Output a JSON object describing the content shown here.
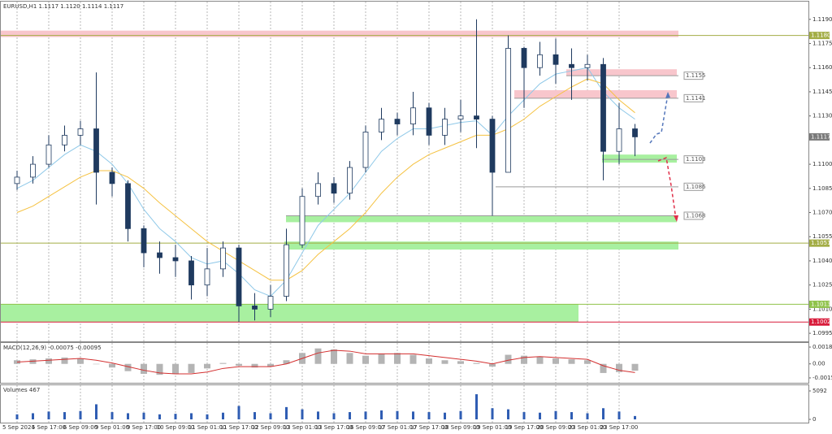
{
  "chart_data": {
    "type": "candlestick",
    "title": "EURUSD,H1  1.1117 1.1120 1.1114 1.1117",
    "categories": [
      "5 Sep 2024",
      null,
      "5 Sep 17:00",
      null,
      "6 Sep 09:00",
      null,
      "9 Sep 01:00",
      null,
      "9 Sep 17:00",
      null,
      "10 Sep 09:00",
      null,
      "11 Sep 01:00",
      null,
      "11 Sep 17:00",
      null,
      "12 Sep 09:00",
      null,
      "13 Sep 01:00",
      null,
      "13 Sep 17:00",
      null,
      "16 Sep 09:00",
      null,
      "17 Sep 01:00",
      null,
      "17 Sep 17:00",
      null,
      "18 Sep 09:00",
      null,
      "19 Sep 01:00",
      null,
      "19 Sep 17:00",
      null,
      "20 Sep 09:00",
      null,
      "23 Sep 01:00",
      null,
      "23 Sep 17:00",
      null
    ],
    "open": [
      1.1088,
      1.1092,
      1.11,
      1.1112,
      1.1118,
      1.1122,
      1.1095,
      1.1088,
      1.106,
      1.1045,
      1.1042,
      1.104,
      1.1025,
      1.1035,
      1.1048,
      1.1012,
      1.101,
      1.1018,
      1.105,
      1.108,
      1.1088,
      1.1082,
      1.1098,
      1.112,
      1.1128,
      1.1125,
      1.1135,
      1.1118,
      1.1128,
      1.113,
      1.1128,
      1.1095,
      1.1172,
      1.116,
      1.1168,
      1.1162,
      1.116,
      1.1162,
      1.1108,
      1.1122
    ],
    "high": [
      1.1096,
      1.1105,
      1.1118,
      1.1124,
      1.1127,
      1.1157,
      1.1098,
      1.109,
      1.1062,
      1.1052,
      1.105,
      1.1043,
      1.1048,
      1.1052,
      1.105,
      1.102,
      1.1025,
      1.106,
      1.1085,
      1.1095,
      1.1092,
      1.1102,
      1.1124,
      1.1135,
      1.1132,
      1.1145,
      1.1138,
      1.1135,
      1.114,
      1.119,
      1.113,
      1.118,
      1.1173,
      1.1176,
      1.1178,
      1.1172,
      1.1168,
      1.1166,
      1.1138,
      1.1125
    ],
    "low": [
      1.1084,
      1.1088,
      1.1098,
      1.1108,
      1.1112,
      1.1075,
      1.108,
      1.1052,
      1.1036,
      1.1032,
      1.103,
      1.1016,
      1.1018,
      1.103,
      1.1002,
      1.1003,
      1.1005,
      1.1015,
      1.1048,
      1.1075,
      1.1076,
      1.1078,
      1.1095,
      1.1115,
      1.1118,
      1.1118,
      1.1112,
      1.1112,
      1.112,
      1.111,
      1.1068,
      1.1095,
      1.1135,
      1.1155,
      1.115,
      1.114,
      1.1152,
      1.109,
      1.11,
      1.1105
    ],
    "close": [
      1.1092,
      1.11,
      1.1112,
      1.1118,
      1.1122,
      1.1095,
      1.1088,
      1.106,
      1.1045,
      1.1042,
      1.104,
      1.1025,
      1.1035,
      1.1048,
      1.1012,
      1.101,
      1.1018,
      1.105,
      1.108,
      1.1088,
      1.1082,
      1.1098,
      1.112,
      1.1128,
      1.1125,
      1.1135,
      1.1118,
      1.1128,
      1.113,
      1.1128,
      1.1095,
      1.1172,
      1.116,
      1.1168,
      1.1162,
      1.116,
      1.1162,
      1.1108,
      1.1122,
      1.1117
    ],
    "up_color": "#ffffff",
    "down_color": "#1f3a5f",
    "wick_color": "#1f3a5f",
    "ylim": [
      1.099,
      1.1201
    ],
    "yticks": [
      {
        "value": 1.119,
        "label": "1.1190"
      },
      1.1175,
      {
        "value": 1.116,
        "label": "1.1160"
      },
      1.1145,
      {
        "value": 1.113,
        "label": "1.1130"
      },
      {
        "value": 1.11,
        "label": "1.1100"
      },
      1.1085,
      {
        "value": 1.107,
        "label": "1.1070"
      },
      1.1055,
      {
        "value": 1.104,
        "label": "1.1040"
      },
      1.1025,
      {
        "value": 1.101,
        "label": "1.1010"
      },
      1.0995
    ],
    "grid": true,
    "moving_averages": [
      {
        "color": "#8ec8e8",
        "values": [
          1.1085,
          1.109,
          1.1098,
          1.1106,
          1.1112,
          1.1108,
          1.11,
          1.1088,
          1.1072,
          1.106,
          1.1052,
          1.1042,
          1.1038,
          1.104,
          1.1032,
          1.1022,
          1.1018,
          1.1028,
          1.1045,
          1.1062,
          1.1072,
          1.1082,
          1.1095,
          1.1108,
          1.1116,
          1.1122,
          1.1122,
          1.1124,
          1.1126,
          1.1127,
          1.1118,
          1.113,
          1.114,
          1.115,
          1.1156,
          1.1158,
          1.116,
          1.1145,
          1.1135,
          1.1128
        ]
      },
      {
        "color": "#f5c242",
        "values": [
          1.107,
          1.1074,
          1.108,
          1.1086,
          1.1092,
          1.1096,
          1.1096,
          1.1092,
          1.1085,
          1.1076,
          1.1068,
          1.106,
          1.1052,
          1.1046,
          1.104,
          1.1034,
          1.1028,
          1.1028,
          1.1034,
          1.1044,
          1.1052,
          1.106,
          1.107,
          1.1082,
          1.1092,
          1.11,
          1.1106,
          1.111,
          1.1114,
          1.1118,
          1.1118,
          1.1122,
          1.1128,
          1.1136,
          1.1142,
          1.1148,
          1.1153,
          1.115,
          1.114,
          1.1132
        ]
      }
    ],
    "zones": [
      {
        "low": 1.1179,
        "high": 1.1183,
        "color": "#f8c6cc"
      },
      {
        "low": 1.1155,
        "high": 1.1159,
        "color": "#f8c6cc"
      },
      {
        "low": 1.1141,
        "high": 1.1146,
        "color": "#f8c6cc"
      },
      {
        "low": 1.1101,
        "high": 1.1106,
        "color": "#a8f0a0"
      },
      {
        "low": 1.1064,
        "high": 1.1068,
        "color": "#a8f0a0"
      },
      {
        "low": 1.1047,
        "high": 1.1052,
        "color": "#a8f0a0"
      },
      {
        "low": 1.1002,
        "high": 1.1013,
        "color": "#a8f0a0"
      }
    ],
    "levels": [
      {
        "value": 1.118,
        "label": "1.1180",
        "color": "#a3ad45",
        "tag": "axis"
      },
      {
        "value": 1.1155,
        "color": "#9a9a9a",
        "tag": "inline"
      },
      {
        "value": 1.1141,
        "color": "#9a9a9a",
        "tag": "inline"
      },
      {
        "value": 1.1103,
        "color": "#9a9a9a",
        "tag": "inline"
      },
      {
        "value": 1.1086,
        "color": "#9a9a9a",
        "tag": "inline"
      },
      {
        "value": 1.1068,
        "color": "#9a9a9a",
        "tag": "inline"
      },
      {
        "value": 1.1051,
        "color": "#a3ad45",
        "tag": "axis"
      },
      {
        "value": 1.1013,
        "color": "#8fc24a",
        "tag": "axis"
      },
      {
        "value": 1.1002,
        "color": "#d81b3a",
        "tag": "axis"
      },
      {
        "value": 1.1117,
        "color": "#7a7a7a",
        "tag": "axis",
        "line": false
      }
    ],
    "macd": {
      "title": "MACD(12,26,9) -0.00075 -0.00095",
      "histogram_color": "#b4b4b4",
      "signal_color": "#d32f2f",
      "histogram": [
        0.0004,
        0.0005,
        0.0006,
        0.0007,
        0.0006,
        0.0,
        -0.0004,
        -0.0008,
        -0.0011,
        -0.0012,
        -0.0011,
        -0.001,
        -0.0005,
        0.0001,
        -0.0002,
        -0.0004,
        -0.0003,
        0.0004,
        0.0012,
        0.0017,
        0.0016,
        0.0012,
        0.0009,
        0.0011,
        0.0012,
        0.001,
        0.0006,
        0.0004,
        0.0003,
        0.0001,
        -0.0003,
        0.001,
        0.0009,
        0.0008,
        0.0006,
        0.0005,
        0.0004,
        -0.001,
        -0.0009,
        -0.00075
      ],
      "signal": [
        0.0002,
        0.0003,
        0.0004,
        0.0005,
        0.0006,
        0.0004,
        0.0001,
        -0.0003,
        -0.0007,
        -0.001,
        -0.0011,
        -0.0011,
        -0.0009,
        -0.0005,
        -0.0003,
        -0.0003,
        -0.0003,
        0.0,
        0.0006,
        0.0012,
        0.0015,
        0.0014,
        0.0011,
        0.0011,
        0.0011,
        0.0011,
        0.0009,
        0.0007,
        0.0005,
        0.0003,
        0.0,
        0.0004,
        0.0007,
        0.0008,
        0.0007,
        0.0006,
        0.0005,
        -0.0002,
        -0.0007,
        -0.00095
      ],
      "ylim": [
        -0.00208,
        0.0023
      ],
      "yticks": [
        0.00185,
        {
          "value": 0,
          "label": "0.00"
        },
        -0.00154
      ]
    },
    "volumes": {
      "title": "Volumes 467",
      "color": "#2f5db3",
      "values": [
        900,
        1100,
        1400,
        1300,
        1500,
        2700,
        1300,
        1100,
        1200,
        900,
        1000,
        1100,
        900,
        1200,
        2400,
        1300,
        1100,
        2200,
        1800,
        1400,
        1100,
        1300,
        1400,
        1600,
        1500,
        1400,
        1300,
        1200,
        1500,
        4500,
        2000,
        1800,
        1300,
        1200,
        1500,
        1300,
        1100,
        2000,
        1400,
        600
      ],
      "ylim": [
        0,
        6110
      ],
      "yticks": [
        5092,
        0
      ]
    }
  }
}
